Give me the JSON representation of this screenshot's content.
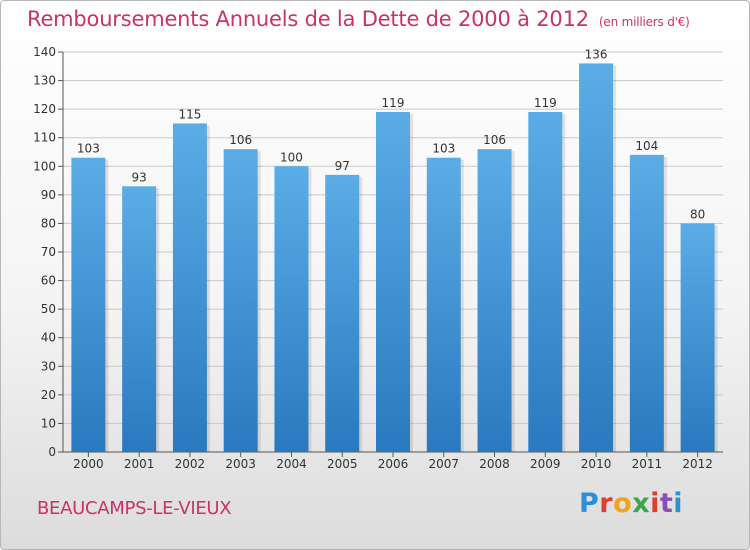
{
  "header": {
    "title": "Remboursements Annuels de la Dette de 2000 à 2012",
    "unit": "(en milliers d'€)"
  },
  "footer": {
    "commune": "BEAUCAMPS-LE-VIEUX",
    "logo": "Proxiti"
  },
  "colors": {
    "title": "#c8336b",
    "bar_top": "#5aade6",
    "bar_bottom": "#2a79c0"
  },
  "chart_data": {
    "type": "bar",
    "categories": [
      "2000",
      "2001",
      "2002",
      "2003",
      "2004",
      "2005",
      "2006",
      "2007",
      "2008",
      "2009",
      "2010",
      "2011",
      "2012"
    ],
    "values": [
      103,
      93,
      115,
      106,
      100,
      97,
      119,
      103,
      106,
      119,
      136,
      104,
      80
    ],
    "data_labels": [
      "103",
      "93",
      "115",
      "106",
      "100",
      "97",
      "119",
      "103",
      "106",
      "119",
      "136",
      "104",
      "80"
    ],
    "ylim": [
      0,
      140
    ],
    "yticks": [
      0,
      10,
      20,
      30,
      40,
      50,
      60,
      70,
      80,
      90,
      100,
      110,
      120,
      130,
      140
    ],
    "grid": true
  }
}
